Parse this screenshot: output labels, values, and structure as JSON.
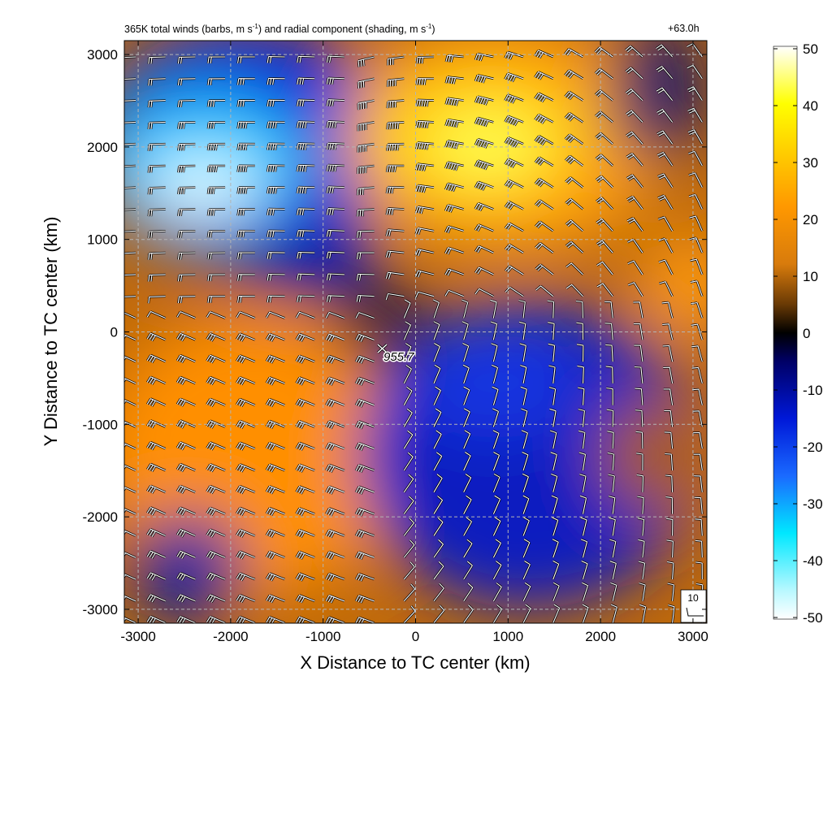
{
  "chart_data": {
    "type": "heatmap",
    "title": {
      "p1": "365K total winds (barbs, m s",
      "sup1": "-1",
      "p2": ") and radial component (shading, m s",
      "sup2": "-1",
      "p3": ")"
    },
    "time_label": "+63.0h",
    "xlabel": "X Distance to TC center (km)",
    "ylabel": "Y Distance to TC center (km)",
    "xlim": [
      -3150,
      3150
    ],
    "ylim": [
      -3150,
      3150
    ],
    "x_ticks": [
      -3000,
      -2000,
      -1000,
      0,
      1000,
      2000,
      3000
    ],
    "y_ticks": [
      -3000,
      -2000,
      -1000,
      0,
      1000,
      2000,
      3000
    ],
    "x_tick_labels": [
      "-3000",
      "-2000",
      "-1000",
      "0",
      "1000",
      "2000",
      "3000"
    ],
    "y_tick_labels": [
      "-3000",
      "-2000",
      "-1000",
      "0",
      "1000",
      "2000",
      "3000"
    ],
    "grid": true,
    "colorbar": {
      "range": [
        -50,
        50
      ],
      "ticks": [
        50,
        40,
        30,
        20,
        10,
        0,
        -10,
        -20,
        -30,
        -40,
        -50
      ],
      "tick_labels": [
        "50",
        "40",
        "30",
        "20",
        "10",
        "0",
        "-10",
        "-20",
        "-30",
        "-40",
        "-50"
      ],
      "colors": {
        "n50": "#ffffff",
        "n45": "#b8f8ff",
        "n35": "#00e8ff",
        "n25": "#1a6aff",
        "n15": "#0018d8",
        "n5": "#000066",
        "zero": "#000000",
        "p5": "#6a3a05",
        "p12": "#d87b0c",
        "p22": "#ff9800",
        "p32": "#ffd000",
        "p40": "#ffff00",
        "p50": "#ffffff"
      }
    },
    "radial_wind_regions": [
      {
        "sign": "negative",
        "location": "north-west",
        "peak": -45
      },
      {
        "sign": "positive",
        "location": "north-east",
        "peak": 35
      },
      {
        "sign": "positive",
        "location": "south-west",
        "peak": 18
      },
      {
        "sign": "negative",
        "location": "south-east",
        "peak": -15
      },
      {
        "sign": "negative",
        "location": "far east, north of center",
        "peak": -8
      }
    ],
    "center_annotation": "955.7",
    "barb_reference": {
      "label": "10"
    }
  }
}
